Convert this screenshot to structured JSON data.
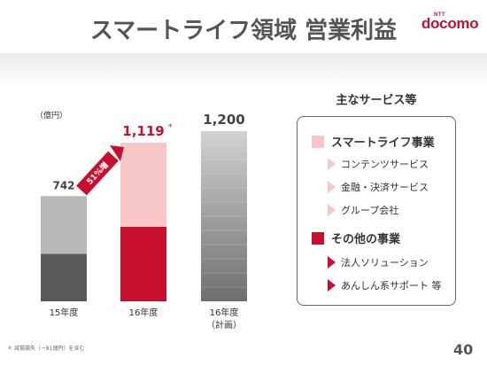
{
  "title": "スマートライフ領域 営業利益",
  "logo": {
    "small": "NTT",
    "brand": "docomo"
  },
  "colors": {
    "accent": "#c8102e",
    "light": "#f8c8c8",
    "dark": "#555555"
  },
  "chart_data": {
    "type": "bar",
    "unit_label": "（億円）",
    "categories": [
      "15年度",
      "16年度",
      "16年度\n（計画）"
    ],
    "totals": [
      742,
      1119,
      1200
    ],
    "total_labels": [
      "742",
      "1,119",
      "1,200"
    ],
    "segments": [
      {
        "name": "その他の事業",
        "values": [
          335,
          525,
          null
        ]
      },
      {
        "name": "スマートライフ事業",
        "values": [
          407,
          594,
          null
        ]
      }
    ],
    "ylim": [
      0,
      1300
    ],
    "annotation": "51%増",
    "asterisk": "*"
  },
  "services": {
    "title": "主なサービス等",
    "categories": [
      {
        "label": "スマートライフ事業",
        "items": [
          "コンテンツサービス",
          "金融・決済サービス",
          "グループ会社"
        ]
      },
      {
        "label": "その他の事業",
        "items": [
          "法人ソリューション",
          "あんしん系サポート 等"
        ]
      }
    ]
  },
  "footnote": "＊ 減損損失（－81億円）を含む",
  "page_number": "40"
}
